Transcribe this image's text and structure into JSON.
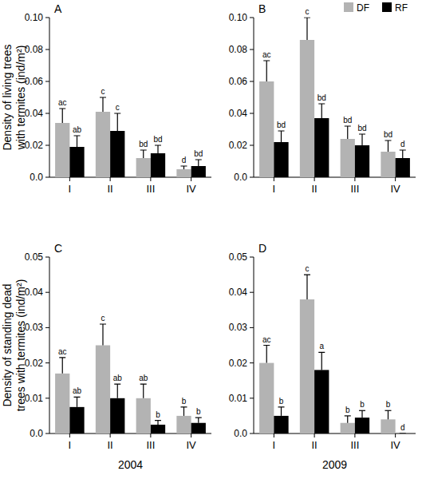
{
  "chart_data": [
    {
      "type": "bar",
      "panel": "A",
      "ylabel": "Density of living trees with termites (ind/m²)",
      "categories": [
        "I",
        "II",
        "III",
        "IV"
      ],
      "series": [
        {
          "name": "DF",
          "color": "#b3b3b3",
          "values": [
            0.034,
            0.041,
            0.012,
            0.005
          ],
          "errors": [
            0.009,
            0.009,
            0.005,
            0.002
          ],
          "letters": [
            "ac",
            "c",
            "bd",
            "d"
          ]
        },
        {
          "name": "RF",
          "color": "#000000",
          "values": [
            0.019,
            0.029,
            0.015,
            0.007
          ],
          "errors": [
            0.007,
            0.011,
            0.005,
            0.004
          ],
          "letters": [
            "ab",
            "c",
            "bd",
            "bd"
          ]
        }
      ],
      "ylim": [
        0,
        0.1
      ],
      "yticks": [
        {
          "value": 0,
          "label": "0.0"
        },
        0.02,
        0.04,
        0.06,
        0.08,
        {
          "value": 0.1,
          "label": "0.10"
        }
      ]
    },
    {
      "type": "bar",
      "panel": "B",
      "legend": "upper right",
      "categories": [
        "I",
        "II",
        "III",
        "IV"
      ],
      "series": [
        {
          "name": "DF",
          "color": "#b3b3b3",
          "values": [
            0.06,
            0.086,
            0.024,
            0.016
          ],
          "errors": [
            0.013,
            0.014,
            0.008,
            0.007
          ],
          "letters": [
            "ac",
            "c",
            "bd",
            "bd"
          ]
        },
        {
          "name": "RF",
          "color": "#000000",
          "values": [
            0.022,
            0.037,
            0.02,
            0.012
          ],
          "errors": [
            0.007,
            0.009,
            0.007,
            0.005
          ],
          "letters": [
            "bd",
            "bd",
            "bd",
            "d"
          ]
        }
      ],
      "ylim": [
        0,
        0.1
      ],
      "yticks": [
        {
          "value": 0,
          "label": "0.0"
        },
        0.02,
        0.04,
        0.06,
        0.08,
        {
          "value": 0.1,
          "label": "0.10"
        }
      ]
    },
    {
      "type": "bar",
      "panel": "C",
      "ylabel": "Density of standing dead trees with termites (ind/m²)",
      "xlabel": "2004",
      "categories": [
        "I",
        "II",
        "III",
        "IV"
      ],
      "series": [
        {
          "name": "DF",
          "color": "#b3b3b3",
          "values": [
            0.017,
            0.025,
            0.01,
            0.005
          ],
          "errors": [
            0.0045,
            0.006,
            0.004,
            0.0025
          ],
          "letters": [
            "ac",
            "c",
            "ab",
            "b"
          ]
        },
        {
          "name": "RF",
          "color": "#000000",
          "values": [
            0.0075,
            0.01,
            0.0025,
            0.003
          ],
          "errors": [
            0.0028,
            0.004,
            0.0012,
            0.0015
          ],
          "letters": [
            "ab",
            "ab",
            "b",
            "b"
          ]
        }
      ],
      "ylim": [
        0,
        0.05
      ],
      "yticks": [
        {
          "value": 0,
          "label": "0.0"
        },
        0.01,
        0.02,
        0.03,
        0.04,
        0.05
      ]
    },
    {
      "type": "bar",
      "panel": "D",
      "xlabel": "2009",
      "categories": [
        "I",
        "II",
        "III",
        "IV"
      ],
      "series": [
        {
          "name": "DF",
          "color": "#b3b3b3",
          "values": [
            0.02,
            0.038,
            0.003,
            0.004
          ],
          "errors": [
            0.005,
            0.007,
            0.002,
            0.0025
          ],
          "letters": [
            "ac",
            "c",
            "b",
            "b"
          ]
        },
        {
          "name": "RF",
          "color": "#000000",
          "values": [
            0.005,
            0.018,
            0.0045,
            0
          ],
          "errors": [
            0.0025,
            0.005,
            0.002,
            0
          ],
          "letters": [
            "b",
            "a",
            "b",
            "d"
          ]
        }
      ],
      "ylim": [
        0,
        0.05
      ],
      "yticks": [
        {
          "value": 0,
          "label": "0.0"
        },
        0.01,
        0.02,
        0.03,
        0.04,
        0.05
      ]
    }
  ]
}
